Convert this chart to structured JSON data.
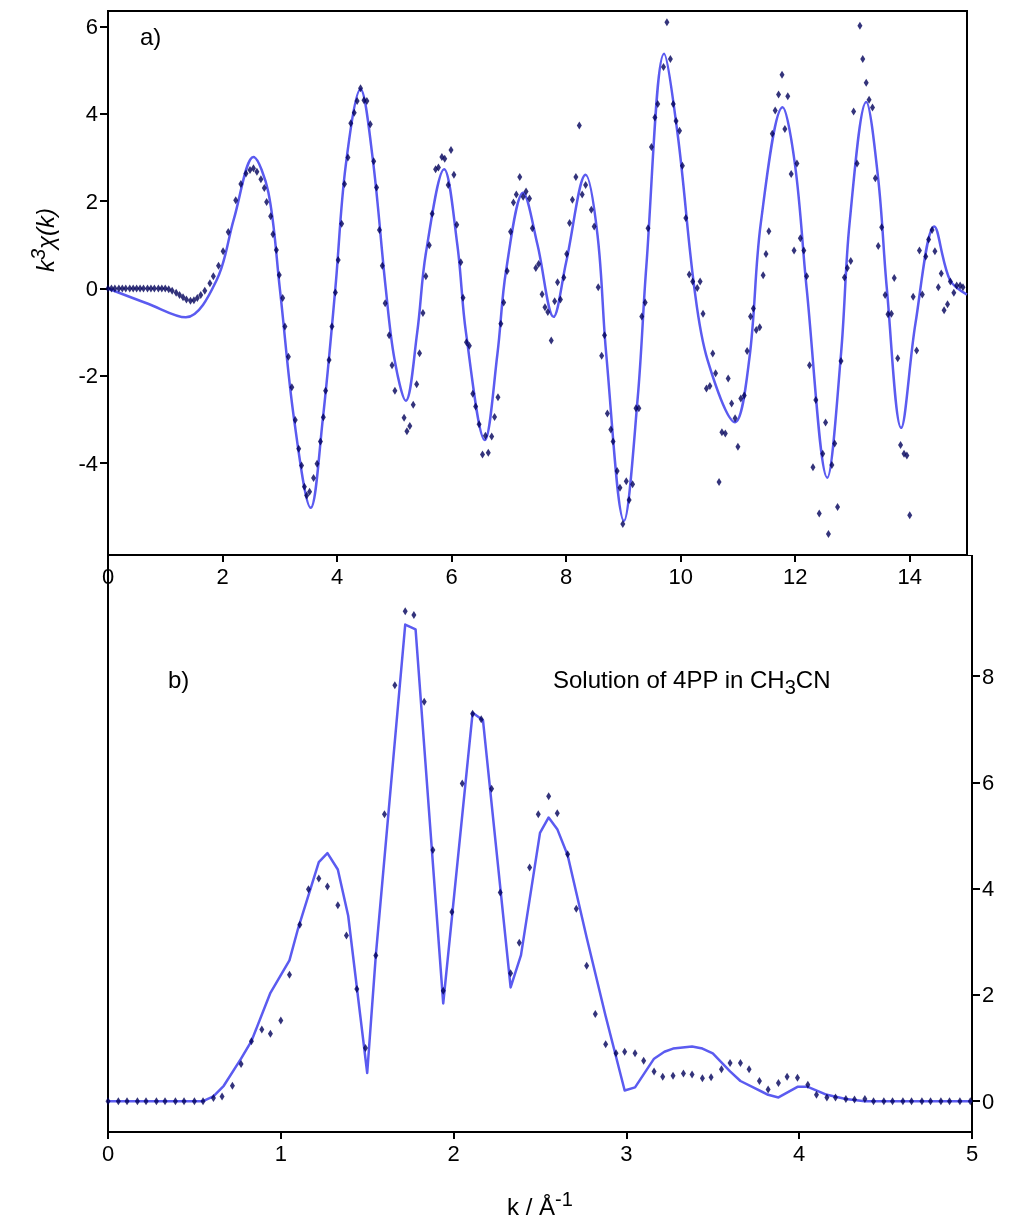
{
  "chart_data": [
    {
      "type": "scatter",
      "ylabel": "k$^{3}$χ(k)",
      "xlim": [
        0,
        15
      ],
      "xticks": [
        0,
        2,
        4,
        6,
        8,
        10,
        12,
        14
      ],
      "ylim": [
        -6.1,
        6.35
      ],
      "yticks": [
        -4,
        -2,
        0,
        2,
        4,
        6
      ],
      "marker": "diamond",
      "annotations": [
        "a)"
      ],
      "series": [
        {
          "type": "scatter",
          "color": "#00005a",
          "x": [
            0,
            0.06,
            0.12,
            0.19,
            0.25,
            0.31,
            0.38,
            0.44,
            0.5,
            0.56,
            0.62,
            0.69,
            0.75,
            0.81,
            0.88,
            0.94,
            1.0,
            1.06,
            1.12,
            1.19,
            1.25,
            1.31,
            1.37,
            1.44,
            1.5,
            1.56,
            1.62,
            1.69,
            1.78,
            1.84,
            1.93,
            2.01,
            2.1,
            2.23,
            2.32,
            2.41,
            2.48,
            2.54,
            2.6,
            2.67,
            2.73,
            2.77,
            2.84,
            2.88,
            2.94,
            2.99,
            3.05,
            3.09,
            3.15,
            3.21,
            3.27,
            3.33,
            3.38,
            3.43,
            3.47,
            3.52,
            3.59,
            3.65,
            3.71,
            3.76,
            3.8,
            3.86,
            3.91,
            3.97,
            4.02,
            4.08,
            4.13,
            4.19,
            4.24,
            4.3,
            4.35,
            4.41,
            4.47,
            4.52,
            4.58,
            4.64,
            4.69,
            4.74,
            4.79,
            4.84,
            4.91,
            4.96,
            5.01,
            5.17,
            5.22,
            5.27,
            5.33,
            5.39,
            5.44,
            5.5,
            5.55,
            5.61,
            5.66,
            5.72,
            5.77,
            5.83,
            5.88,
            5.94,
            5.99,
            6.04,
            6.09,
            6.16,
            6.2,
            6.26,
            6.31,
            6.37,
            6.42,
            6.48,
            6.54,
            6.59,
            6.64,
            6.7,
            6.75,
            6.81,
            6.86,
            6.91,
            6.97,
            7.03,
            7.08,
            7.13,
            7.19,
            7.25,
            7.3,
            7.36,
            7.41,
            7.47,
            7.52,
            7.58,
            7.63,
            7.68,
            7.74,
            7.8,
            7.85,
            7.9,
            7.96,
            8.01,
            8.06,
            8.11,
            8.17,
            8.23,
            8.28,
            8.34,
            8.44,
            8.49,
            8.56,
            8.62,
            8.67,
            8.72,
            8.78,
            8.82,
            8.89,
            8.94,
            8.99,
            9.05,
            9.1,
            9.16,
            9.22,
            9.27,
            9.32,
            9.38,
            9.43,
            9.49,
            9.55,
            9.6,
            9.7,
            9.76,
            9.82,
            9.87,
            9.92,
            9.98,
            10.03,
            10.09,
            10.15,
            10.21,
            10.29,
            10.34,
            10.39,
            10.45,
            10.51,
            10.56,
            10.61,
            10.67,
            10.72,
            10.78,
            10.83,
            10.89,
            10.95,
            11.0,
            11.05,
            11.11,
            11.16,
            11.22,
            11.27,
            11.32,
            11.38,
            11.44,
            11.49,
            11.54,
            11.6,
            11.65,
            11.71,
            11.77,
            11.82,
            11.87,
            11.93,
            11.98,
            12.03,
            12.09,
            12.15,
            12.2,
            12.25,
            12.31,
            12.36,
            12.42,
            12.48,
            12.53,
            12.58,
            12.64,
            12.69,
            12.74,
            12.8,
            12.86,
            12.91,
            12.97,
            13.02,
            13.08,
            13.13,
            13.18,
            13.24,
            13.29,
            13.35,
            13.4,
            13.45,
            13.51,
            13.57,
            13.62,
            13.68,
            13.73,
            13.79,
            13.84,
            13.9,
            13.95,
            14.0,
            14.06,
            14.12,
            14.17,
            14.22,
            14.28,
            14.33,
            14.39,
            14.44,
            14.5,
            14.55,
            14.6,
            14.66,
            14.71,
            14.77,
            14.82,
            14.88,
            14.93
          ],
          "values": [
            0,
            0,
            0,
            0,
            0,
            0,
            0,
            0,
            0,
            0,
            0,
            0,
            0,
            0,
            0,
            0,
            0,
            -0.02,
            -0.05,
            -0.1,
            -0.15,
            -0.2,
            -0.25,
            -0.28,
            -0.27,
            -0.22,
            -0.15,
            -0.05,
            0.12,
            0.28,
            0.52,
            0.85,
            1.29,
            2.02,
            2.39,
            2.63,
            2.71,
            2.75,
            2.67,
            2.5,
            2.3,
            1.98,
            1.65,
            1.24,
            0.88,
            0.31,
            -0.22,
            -0.87,
            -1.56,
            -2.26,
            -3.01,
            -3.67,
            -4.05,
            -4.54,
            -4.74,
            -4.65,
            -4.34,
            -4.01,
            -3.5,
            -2.95,
            -2.34,
            -1.64,
            -0.87,
            -0.09,
            0.65,
            1.48,
            2.39,
            3.0,
            3.78,
            4.02,
            4.29,
            4.58,
            4.31,
            4.29,
            3.76,
            2.91,
            2.31,
            1.34,
            0.52,
            -0.34,
            -1.07,
            -1.76,
            -2.34,
            -2.96,
            -3.27,
            -3.15,
            -2.66,
            -2.19,
            -1.48,
            -0.56,
            0.28,
            0.99,
            1.71,
            2.73,
            2.77,
            3.01,
            2.97,
            2.37,
            3.17,
            2.6,
            1.46,
            0.6,
            -0.21,
            -1.23,
            -1.31,
            -2.41,
            -2.7,
            -3.11,
            -3.8,
            -3.37,
            -3.76,
            -3.39,
            -2.94,
            -2.49,
            -0.81,
            -0.32,
            0.4,
            1.3,
            1.97,
            2.15,
            2.55,
            2.1,
            2.22,
            2.06,
            1.38,
            0.47,
            0.56,
            -0.13,
            -0.43,
            -0.54,
            -1.19,
            -0.29,
            0.14,
            -0.25,
            0.25,
            0.79,
            1.5,
            2.03,
            2.55,
            3.73,
            2.15,
            2.37,
            1.8,
            1.42,
            0.03,
            -1.54,
            -1.07,
            -2.86,
            -3.23,
            -3.5,
            -4.18,
            -4.56,
            -5.39,
            -4.41,
            -4.84,
            -4.48,
            -2.74,
            -2.74,
            -0.64,
            -0.32,
            1.38,
            3.24,
            3.91,
            4.22,
            5.07,
            6.09,
            5.25,
            4.22,
            3.83,
            3.61,
            2.81,
            1.61,
            0.32,
            0.16,
            0.01,
            0.16,
            -0.58,
            -2.29,
            -2.23,
            -1.49,
            -1.94,
            -4.43,
            -3.29,
            -3.32,
            -2.06,
            -2.63,
            -2.97,
            -3.62,
            -2.52,
            -2.45,
            -1.43,
            -0.64,
            -0.46,
            -0.95,
            -0.89,
            0.3,
            0.79,
            1.31,
            3.54,
            4.07,
            4.44,
            4.89,
            3.65,
            4.4,
            2.62,
            0.87,
            2.86,
            1.15,
            0.87,
            0.28,
            -1.76,
            -4.09,
            -2.55,
            -5.15,
            -3.78,
            -3.07,
            -5.62,
            -4.04,
            -3.55,
            -5.0,
            -1.66,
            0.25,
            0.47,
            0.63,
            4.05,
            2.86,
            6.01,
            5.25,
            4.71,
            4.32,
            4.14,
            2.52,
            0.97,
            1.4,
            -0.15,
            -0.59,
            -0.58,
            0.24,
            -1.6,
            -3.58,
            -3.78,
            -3.82,
            -5.19,
            -0.19,
            -1.42,
            0.87,
            -0.14,
            0.73,
            1.12,
            1.34,
            0.85,
            0.03,
            0.34,
            -0.5,
            -0.36,
            0.16,
            -0.1,
            0.07,
            0.07,
            0.03
          ]
        },
        {
          "type": "line",
          "color": "#5b5bf0",
          "marker": "none",
          "x": [
            0,
            0.7,
            1.36,
            1.9,
            2.2,
            2.54,
            2.8,
            3.0,
            3.25,
            3.54,
            3.75,
            3.97,
            4.15,
            4.41,
            4.62,
            4.85,
            5.0,
            5.2,
            5.4,
            5.55,
            5.87,
            6.1,
            6.25,
            6.58,
            6.8,
            6.95,
            7.25,
            7.5,
            7.78,
            8.0,
            8.34,
            8.55,
            8.7,
            9.01,
            9.25,
            9.4,
            9.71,
            9.95,
            10.24,
            10.47,
            10.95,
            11.2,
            11.4,
            11.78,
            12.0,
            12.2,
            12.56,
            12.8,
            12.95,
            13.24,
            13.45,
            13.6,
            13.85,
            14.1,
            14.43,
            14.7,
            15
          ],
          "values": [
            0,
            -0.35,
            -0.66,
            0.2,
            1.6,
            3.01,
            2.2,
            0,
            -3.0,
            -5.02,
            -3.0,
            0,
            2.8,
            4.56,
            3.0,
            0,
            -1.6,
            -2.57,
            -1,
            0.8,
            2.73,
            1,
            -1,
            -3.47,
            -1.5,
            0.4,
            2.19,
            1,
            -0.65,
            0.6,
            2.6,
            1.2,
            -1.5,
            -5.32,
            -2.5,
            0.5,
            5.37,
            3.5,
            0,
            -1.64,
            -3.06,
            -1.6,
            1.5,
            4.15,
            2.8,
            0,
            -4.33,
            -1.5,
            1.5,
            4.27,
            2.5,
            0,
            -3.19,
            -0.8,
            1.42,
            0.2,
            -0.14
          ]
        }
      ]
    },
    {
      "type": "scatter",
      "xlabel": "k / Å$^{-1}$",
      "xlim": [
        0,
        5
      ],
      "xticks": [
        0,
        1,
        2,
        3,
        4,
        5
      ],
      "ylim": [
        -0.58,
        10.28
      ],
      "yticks": [
        0,
        2,
        4,
        6,
        8
      ],
      "marker": "diamond",
      "annotations": [
        "b)",
        "Solution of 4PP in CH$_{3}$CN"
      ],
      "series": [
        {
          "type": "scatter",
          "color": "#00005a",
          "x": [
            0,
            0.06,
            0.11,
            0.17,
            0.22,
            0.28,
            0.33,
            0.39,
            0.44,
            0.5,
            0.55,
            0.61,
            0.66,
            0.72,
            0.77,
            0.83,
            0.89,
            0.94,
            1.0,
            1.05,
            1.11,
            1.16,
            1.22,
            1.27,
            1.33,
            1.38,
            1.44,
            1.49,
            1.55,
            1.6,
            1.66,
            1.72,
            1.77,
            1.83,
            1.88,
            1.94,
            1.99,
            2.05,
            2.11,
            2.16,
            2.22,
            2.27,
            2.33,
            2.38,
            2.44,
            2.49,
            2.55,
            2.6,
            2.66,
            2.71,
            2.77,
            2.82,
            2.88,
            2.94,
            2.99,
            3.05,
            3.1,
            3.16,
            3.21,
            3.27,
            3.33,
            3.38,
            3.44,
            3.49,
            3.55,
            3.6,
            3.66,
            3.71,
            3.77,
            3.82,
            3.88,
            3.93,
            3.99,
            4.05,
            4.1,
            4.16,
            4.21,
            4.27,
            4.32,
            4.38,
            4.43,
            4.49,
            4.54,
            4.6,
            4.65,
            4.71,
            4.76,
            4.82,
            4.87,
            4.93,
            4.99
          ],
          "values": [
            0,
            0,
            0,
            0,
            0,
            0,
            0,
            0,
            0,
            0,
            0,
            0.06,
            0.09,
            0.29,
            0.7,
            1.13,
            1.35,
            1.27,
            1.52,
            2.38,
            3.32,
            3.99,
            4.19,
            4.04,
            3.69,
            3.12,
            2.11,
            1.0,
            2.74,
            5.4,
            7.83,
            9.22,
            9.15,
            7.52,
            4.73,
            2.08,
            3.56,
            5.98,
            7.29,
            7.19,
            5.88,
            3.93,
            2.41,
            2.98,
            4.4,
            5.4,
            5.74,
            5.42,
            4.65,
            3.62,
            2.55,
            1.64,
            1.07,
            0.9,
            0.93,
            0.9,
            0.76,
            0.56,
            0.46,
            0.48,
            0.52,
            0.5,
            0.43,
            0.45,
            0.6,
            0.72,
            0.72,
            0.6,
            0.38,
            0.22,
            0.34,
            0.46,
            0.44,
            0.31,
            0.12,
            0.07,
            0.07,
            0.04,
            0.03,
            0.04,
            0,
            0,
            0,
            0,
            0,
            0,
            0,
            0,
            0,
            0,
            0
          ]
        },
        {
          "type": "line",
          "color": "#5b5bf0",
          "marker": "none",
          "x": [
            0,
            0.55,
            0.61,
            0.67,
            0.77,
            0.83,
            0.94,
            1.05,
            1.1,
            1.22,
            1.27,
            1.33,
            1.39,
            1.5,
            1.55,
            1.72,
            1.78,
            1.94,
            2.11,
            2.17,
            2.33,
            2.39,
            2.5,
            2.55,
            2.6,
            2.66,
            2.77,
            2.88,
            2.99,
            3.05,
            3.16,
            3.22,
            3.27,
            3.38,
            3.44,
            3.5,
            3.6,
            3.66,
            3.82,
            3.88,
            3.99,
            4.05,
            4.16,
            4.27,
            4.38,
            5.0
          ],
          "values": [
            0,
            0,
            0.09,
            0.29,
            0.8,
            1.13,
            2.04,
            2.65,
            3.25,
            4.5,
            4.67,
            4.36,
            3.49,
            0.53,
            2.75,
            8.97,
            8.88,
            1.84,
            7.31,
            7.17,
            2.14,
            2.75,
            5.05,
            5.34,
            5.12,
            4.63,
            3.08,
            1.6,
            0.2,
            0.26,
            0.8,
            0.93,
            0.99,
            1.03,
            0.99,
            0.9,
            0.56,
            0.38,
            0.12,
            0.07,
            0.27,
            0.27,
            0.12,
            0.04,
            0,
            0
          ]
        }
      ]
    }
  ]
}
